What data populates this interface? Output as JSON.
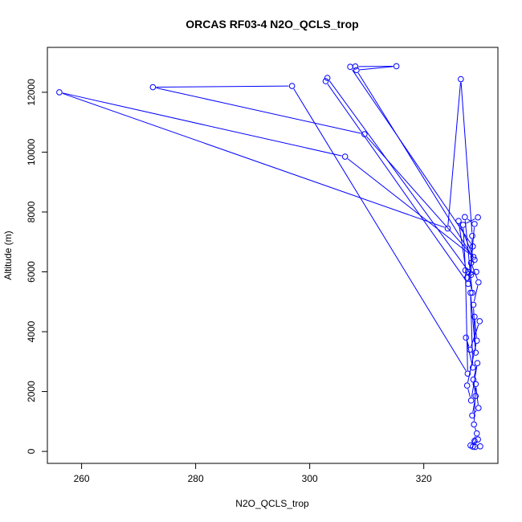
{
  "chart_data": {
    "type": "line",
    "title": "ORCAS RF03-4 N2O_QCLS_trop",
    "xlabel": "N2O_QCLS_trop",
    "ylabel": "Altitude (m)",
    "xlim": [
      254,
      333
    ],
    "ylim": [
      -400,
      13500
    ],
    "xticks": [
      260,
      280,
      300,
      320
    ],
    "yticks": [
      0,
      2000,
      4000,
      6000,
      8000,
      10000,
      12000
    ],
    "grid": false,
    "series": [
      {
        "color": "#0000ff",
        "marker": "open-circle",
        "points": [
          [
            329.5,
            7820
          ],
          [
            326.9,
            7570
          ],
          [
            327.3,
            6050
          ],
          [
            327.7,
            2600
          ],
          [
            296.9,
            12210
          ],
          [
            272.5,
            12170
          ],
          [
            309.6,
            10600
          ],
          [
            328.7,
            6500
          ],
          [
            306.2,
            9850
          ],
          [
            256.1,
            12000
          ],
          [
            324.2,
            7450
          ],
          [
            326.5,
            12440
          ],
          [
            328.5,
            7200
          ],
          [
            328.3,
            5900
          ],
          [
            303.1,
            12480
          ],
          [
            302.8,
            12370
          ],
          [
            327.8,
            5600
          ],
          [
            328.6,
            6850
          ],
          [
            307.1,
            12850
          ],
          [
            308.0,
            12860
          ],
          [
            315.2,
            12870
          ],
          [
            308.2,
            12740
          ],
          [
            328.9,
            6400
          ],
          [
            326.1,
            7700
          ],
          [
            327.6,
            5800
          ],
          [
            329.2,
            6000
          ],
          [
            327.8,
            6000
          ],
          [
            328.5,
            5300
          ],
          [
            327.2,
            7830
          ],
          [
            328.9,
            7600
          ],
          [
            328.3,
            6300
          ],
          [
            329.6,
            5650
          ],
          [
            328.7,
            4900
          ],
          [
            329.1,
            3300
          ],
          [
            328.2,
            5300
          ],
          [
            328.6,
            2800
          ],
          [
            327.4,
            3800
          ],
          [
            328.1,
            3400
          ],
          [
            329.8,
            4350
          ],
          [
            328.9,
            4500
          ],
          [
            329.3,
            3700
          ],
          [
            327.6,
            2200
          ],
          [
            328.3,
            1700
          ],
          [
            329.4,
            2950
          ],
          [
            328.7,
            2400
          ],
          [
            329.1,
            1850
          ],
          [
            328.5,
            1200
          ],
          [
            329.6,
            1450
          ],
          [
            329.1,
            2250
          ],
          [
            328.8,
            900
          ],
          [
            329.3,
            600
          ],
          [
            328.2,
            200
          ],
          [
            329.5,
            400
          ],
          [
            328.6,
            160
          ],
          [
            329.9,
            170
          ],
          [
            329.0,
            150
          ],
          [
            328.9,
            350
          ]
        ]
      }
    ]
  }
}
